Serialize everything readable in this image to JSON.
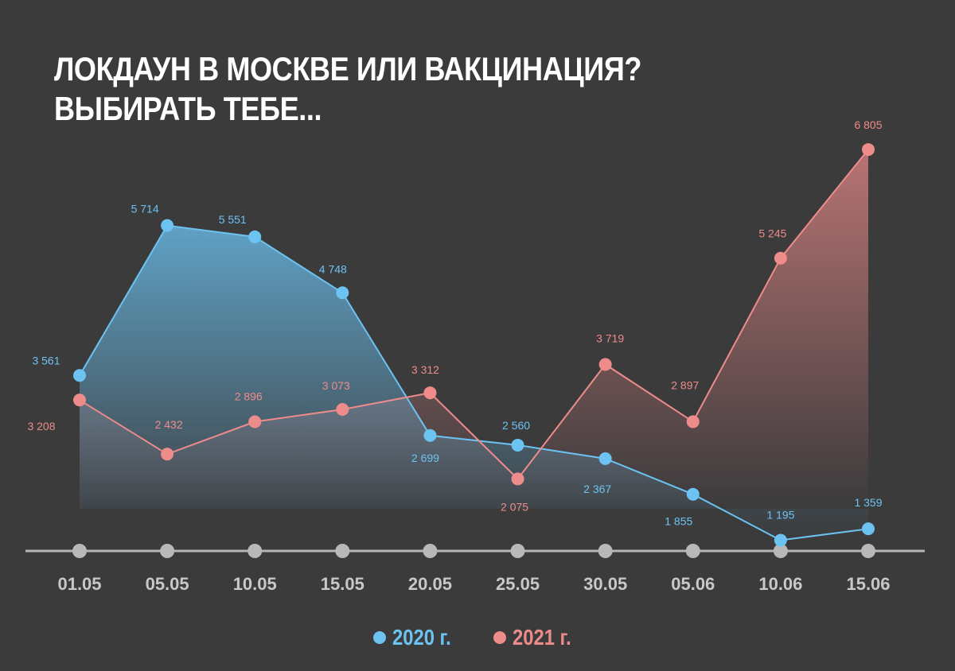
{
  "title_lines": [
    "ЛОКДАУН В МОСКВЕ ИЛИ ВАКЦИНАЦИЯ?",
    "ВЫБИРАТЬ ТЕБЕ..."
  ],
  "colors": {
    "background": "#3b3b3c",
    "series_2020": "#6cc3f2",
    "series_2021": "#ee8b8b",
    "axis": "#b5b5b5"
  },
  "chart_data": {
    "type": "area",
    "title": "ЛОКДАУН В МОСКВЕ ИЛИ ВАКЦИНАЦИЯ? ВЫБИРАТЬ ТЕБЕ...",
    "categories": [
      "01.05",
      "05.05",
      "10.05",
      "15.05",
      "20.05",
      "25.05",
      "30.05",
      "05.06",
      "10.06",
      "15.06"
    ],
    "series": [
      {
        "name": "2020 г.",
        "values": [
          3561,
          5714,
          5551,
          4748,
          2699,
          2560,
          2367,
          1855,
          1195,
          1359
        ],
        "labels": [
          "3 561",
          "5 714",
          "5 551",
          "4 748",
          "2 699",
          "2 560",
          "2 367",
          "1 855",
          "1 195",
          "1 359"
        ],
        "color": "#6cc3f2"
      },
      {
        "name": "2021 г.",
        "values": [
          3208,
          2432,
          2896,
          3073,
          3312,
          2075,
          3719,
          2897,
          5245,
          6805
        ],
        "labels": [
          "3 208",
          "2 432",
          "2 896",
          "3 073",
          "3 312",
          "2 075",
          "3 719",
          "2 897",
          "5 245",
          "6 805"
        ],
        "color": "#ee8b8b"
      }
    ],
    "xlabel": "",
    "ylabel": "",
    "ylim": [
      0,
      7000
    ],
    "grid": false,
    "legend_position": "bottom-center"
  },
  "legend": [
    {
      "label": "2020 г.",
      "color": "#6cc3f2"
    },
    {
      "label": "2021 г.",
      "color": "#ee8b8b"
    }
  ]
}
